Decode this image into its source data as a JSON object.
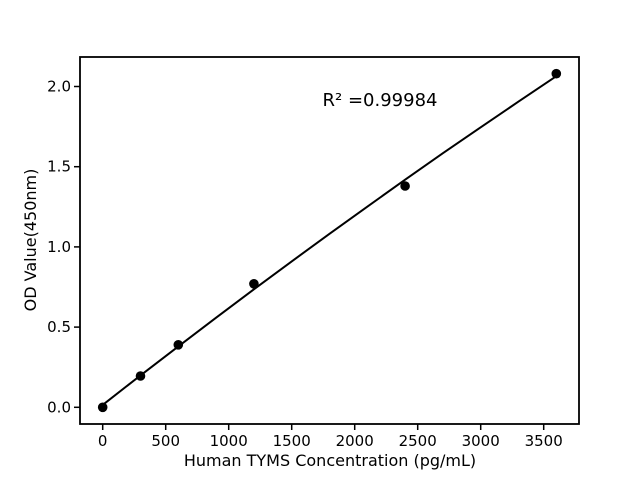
{
  "chart_data": {
    "type": "scatter",
    "title": "",
    "xlabel": "Human TYMS Concentration (pg/mL)",
    "ylabel": "OD Value(450nm)",
    "annotation": "R² =0.99984",
    "points": {
      "x": [
        0,
        300,
        600,
        1200,
        2400,
        3600
      ],
      "y": [
        0.0,
        0.195,
        0.39,
        0.77,
        1.38,
        2.08
      ]
    },
    "fit_line": {
      "x": [
        0,
        300,
        600,
        900,
        1200,
        1500,
        1800,
        2100,
        2400,
        2700,
        3000,
        3300,
        3600
      ],
      "y": [
        0.015,
        0.199,
        0.38,
        0.559,
        0.736,
        0.91,
        1.082,
        1.251,
        1.419,
        1.584,
        1.746,
        1.906,
        2.064
      ]
    },
    "x_ticks": [
      0,
      500,
      1000,
      1500,
      2000,
      2500,
      3000,
      3500
    ],
    "x_tick_labels": [
      "0",
      "500",
      "1000",
      "1500",
      "2000",
      "2500",
      "3000",
      "3500"
    ],
    "y_ticks": [
      0.0,
      0.5,
      1.0,
      1.5,
      2.0
    ],
    "y_tick_labels": [
      "0.0",
      "0.5",
      "1.0",
      "1.5",
      "2.0"
    ],
    "xlim": [
      -180,
      3780
    ],
    "ylim": [
      -0.104,
      2.184
    ],
    "legend": null,
    "grid": false,
    "colors": {
      "background": "#ffffff",
      "marker": "#000000",
      "line": "#000000",
      "frame": "#000000",
      "text": "#000000"
    }
  }
}
